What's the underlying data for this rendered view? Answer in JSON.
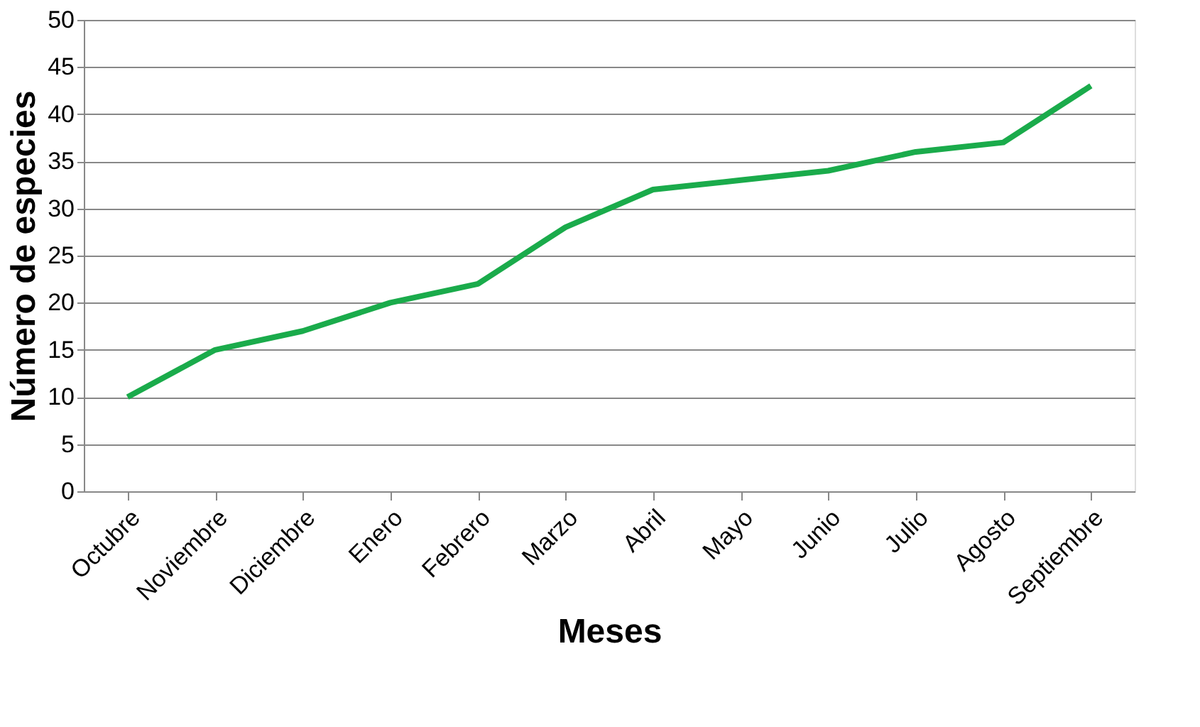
{
  "chart_data": {
    "type": "line",
    "xlabel": "Meses",
    "ylabel": "Número de especies",
    "categories": [
      "Octubre",
      "Noviembre",
      "Diciembre",
      "Enero",
      "Febrero",
      "Marzo",
      "Abril",
      "Mayo",
      "Junio",
      "Julio",
      "Agosto",
      "Septiembre"
    ],
    "series": [
      {
        "color": "#1aab4b",
        "values": [
          10,
          15,
          17,
          20,
          22,
          28,
          32,
          33,
          34,
          36,
          37,
          43
        ]
      }
    ],
    "ylim": [
      0,
      50
    ],
    "yticks": [
      0,
      5,
      10,
      15,
      20,
      25,
      30,
      35,
      40,
      45,
      50
    ],
    "grid": "y",
    "marker": "none",
    "line_style": "solid"
  }
}
